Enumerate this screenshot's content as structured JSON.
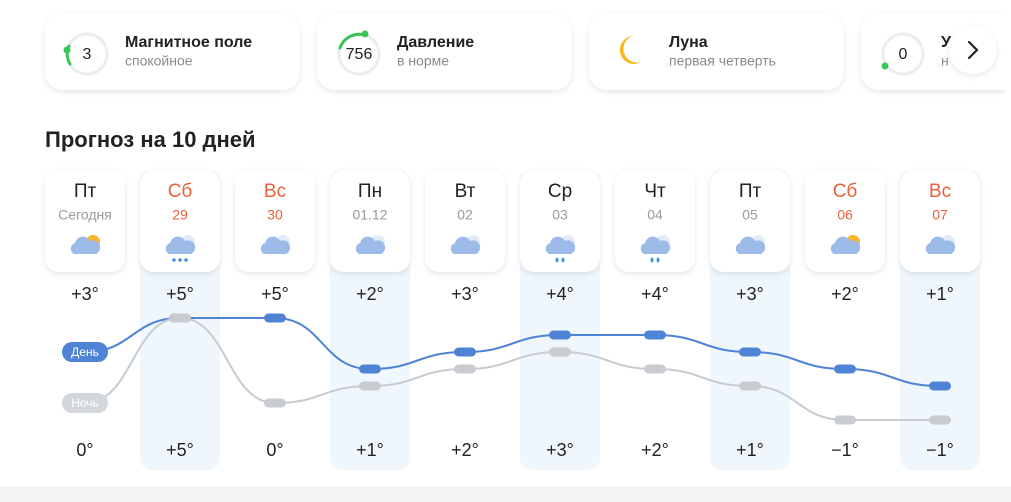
{
  "cards": [
    {
      "value": "3",
      "title": "Магнитное поле",
      "subtitle": "спокойное"
    },
    {
      "value": "756",
      "title": "Давление",
      "subtitle": "в норме"
    },
    {
      "title": "Луна",
      "subtitle": "первая четверть"
    },
    {
      "value": "0",
      "title": "У",
      "subtitle": "н"
    }
  ],
  "heading": "Прогноз на 10 дней",
  "legend": {
    "day": "День",
    "night": "Ночь"
  },
  "days": [
    {
      "weekday": "Пт",
      "date": "Сегодня",
      "weekend": false,
      "icon": "cloud-sun",
      "day": {
        "value": 3,
        "label": "+3°"
      },
      "night": {
        "value": 0,
        "label": "0°"
      }
    },
    {
      "weekday": "Сб",
      "date": "29",
      "weekend": true,
      "icon": "snow",
      "day": {
        "value": 5,
        "label": "+5°"
      },
      "night": {
        "value": 5,
        "label": "+5°"
      }
    },
    {
      "weekday": "Вс",
      "date": "30",
      "weekend": true,
      "icon": "cloud",
      "day": {
        "value": 5,
        "label": "+5°"
      },
      "night": {
        "value": 0,
        "label": "0°"
      }
    },
    {
      "weekday": "Пн",
      "date": "01.12",
      "weekend": false,
      "icon": "cloud",
      "day": {
        "value": 2,
        "label": "+2°"
      },
      "night": {
        "value": 1,
        "label": "+1°"
      }
    },
    {
      "weekday": "Вт",
      "date": "02",
      "weekend": false,
      "icon": "cloud",
      "day": {
        "value": 3,
        "label": "+3°"
      },
      "night": {
        "value": 2,
        "label": "+2°"
      }
    },
    {
      "weekday": "Ср",
      "date": "03",
      "weekend": false,
      "icon": "rain",
      "day": {
        "value": 4,
        "label": "+4°"
      },
      "night": {
        "value": 3,
        "label": "+3°"
      }
    },
    {
      "weekday": "Чт",
      "date": "04",
      "weekend": false,
      "icon": "rain",
      "day": {
        "value": 4,
        "label": "+4°"
      },
      "night": {
        "value": 2,
        "label": "+2°"
      }
    },
    {
      "weekday": "Пт",
      "date": "05",
      "weekend": false,
      "icon": "cloud",
      "day": {
        "value": 3,
        "label": "+3°"
      },
      "night": {
        "value": 1,
        "label": "+1°"
      }
    },
    {
      "weekday": "Сб",
      "date": "06",
      "weekend": true,
      "icon": "cloud-sun",
      "day": {
        "value": 2,
        "label": "+2°"
      },
      "night": {
        "value": -1,
        "label": "−1°"
      }
    },
    {
      "weekday": "Вс",
      "date": "07",
      "weekend": true,
      "icon": "cloud",
      "day": {
        "value": 1,
        "label": "+1°"
      },
      "night": {
        "value": -1,
        "label": "−1°"
      }
    }
  ]
}
